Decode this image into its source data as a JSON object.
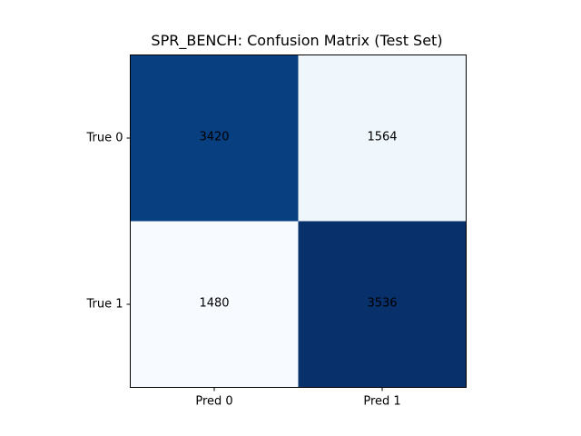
{
  "chart_data": {
    "type": "heatmap",
    "title": "SPR_BENCH: Confusion Matrix (Test Set)",
    "xlabel": "",
    "ylabel": "",
    "x_categories": [
      "Pred 0",
      "Pred 1"
    ],
    "y_categories": [
      "True 0",
      "True 1"
    ],
    "values": [
      [
        3420,
        1564
      ],
      [
        1480,
        3536
      ]
    ],
    "colormap": "Blues",
    "color_range": [
      1480,
      3536
    ],
    "grid": false,
    "legend": "none"
  }
}
